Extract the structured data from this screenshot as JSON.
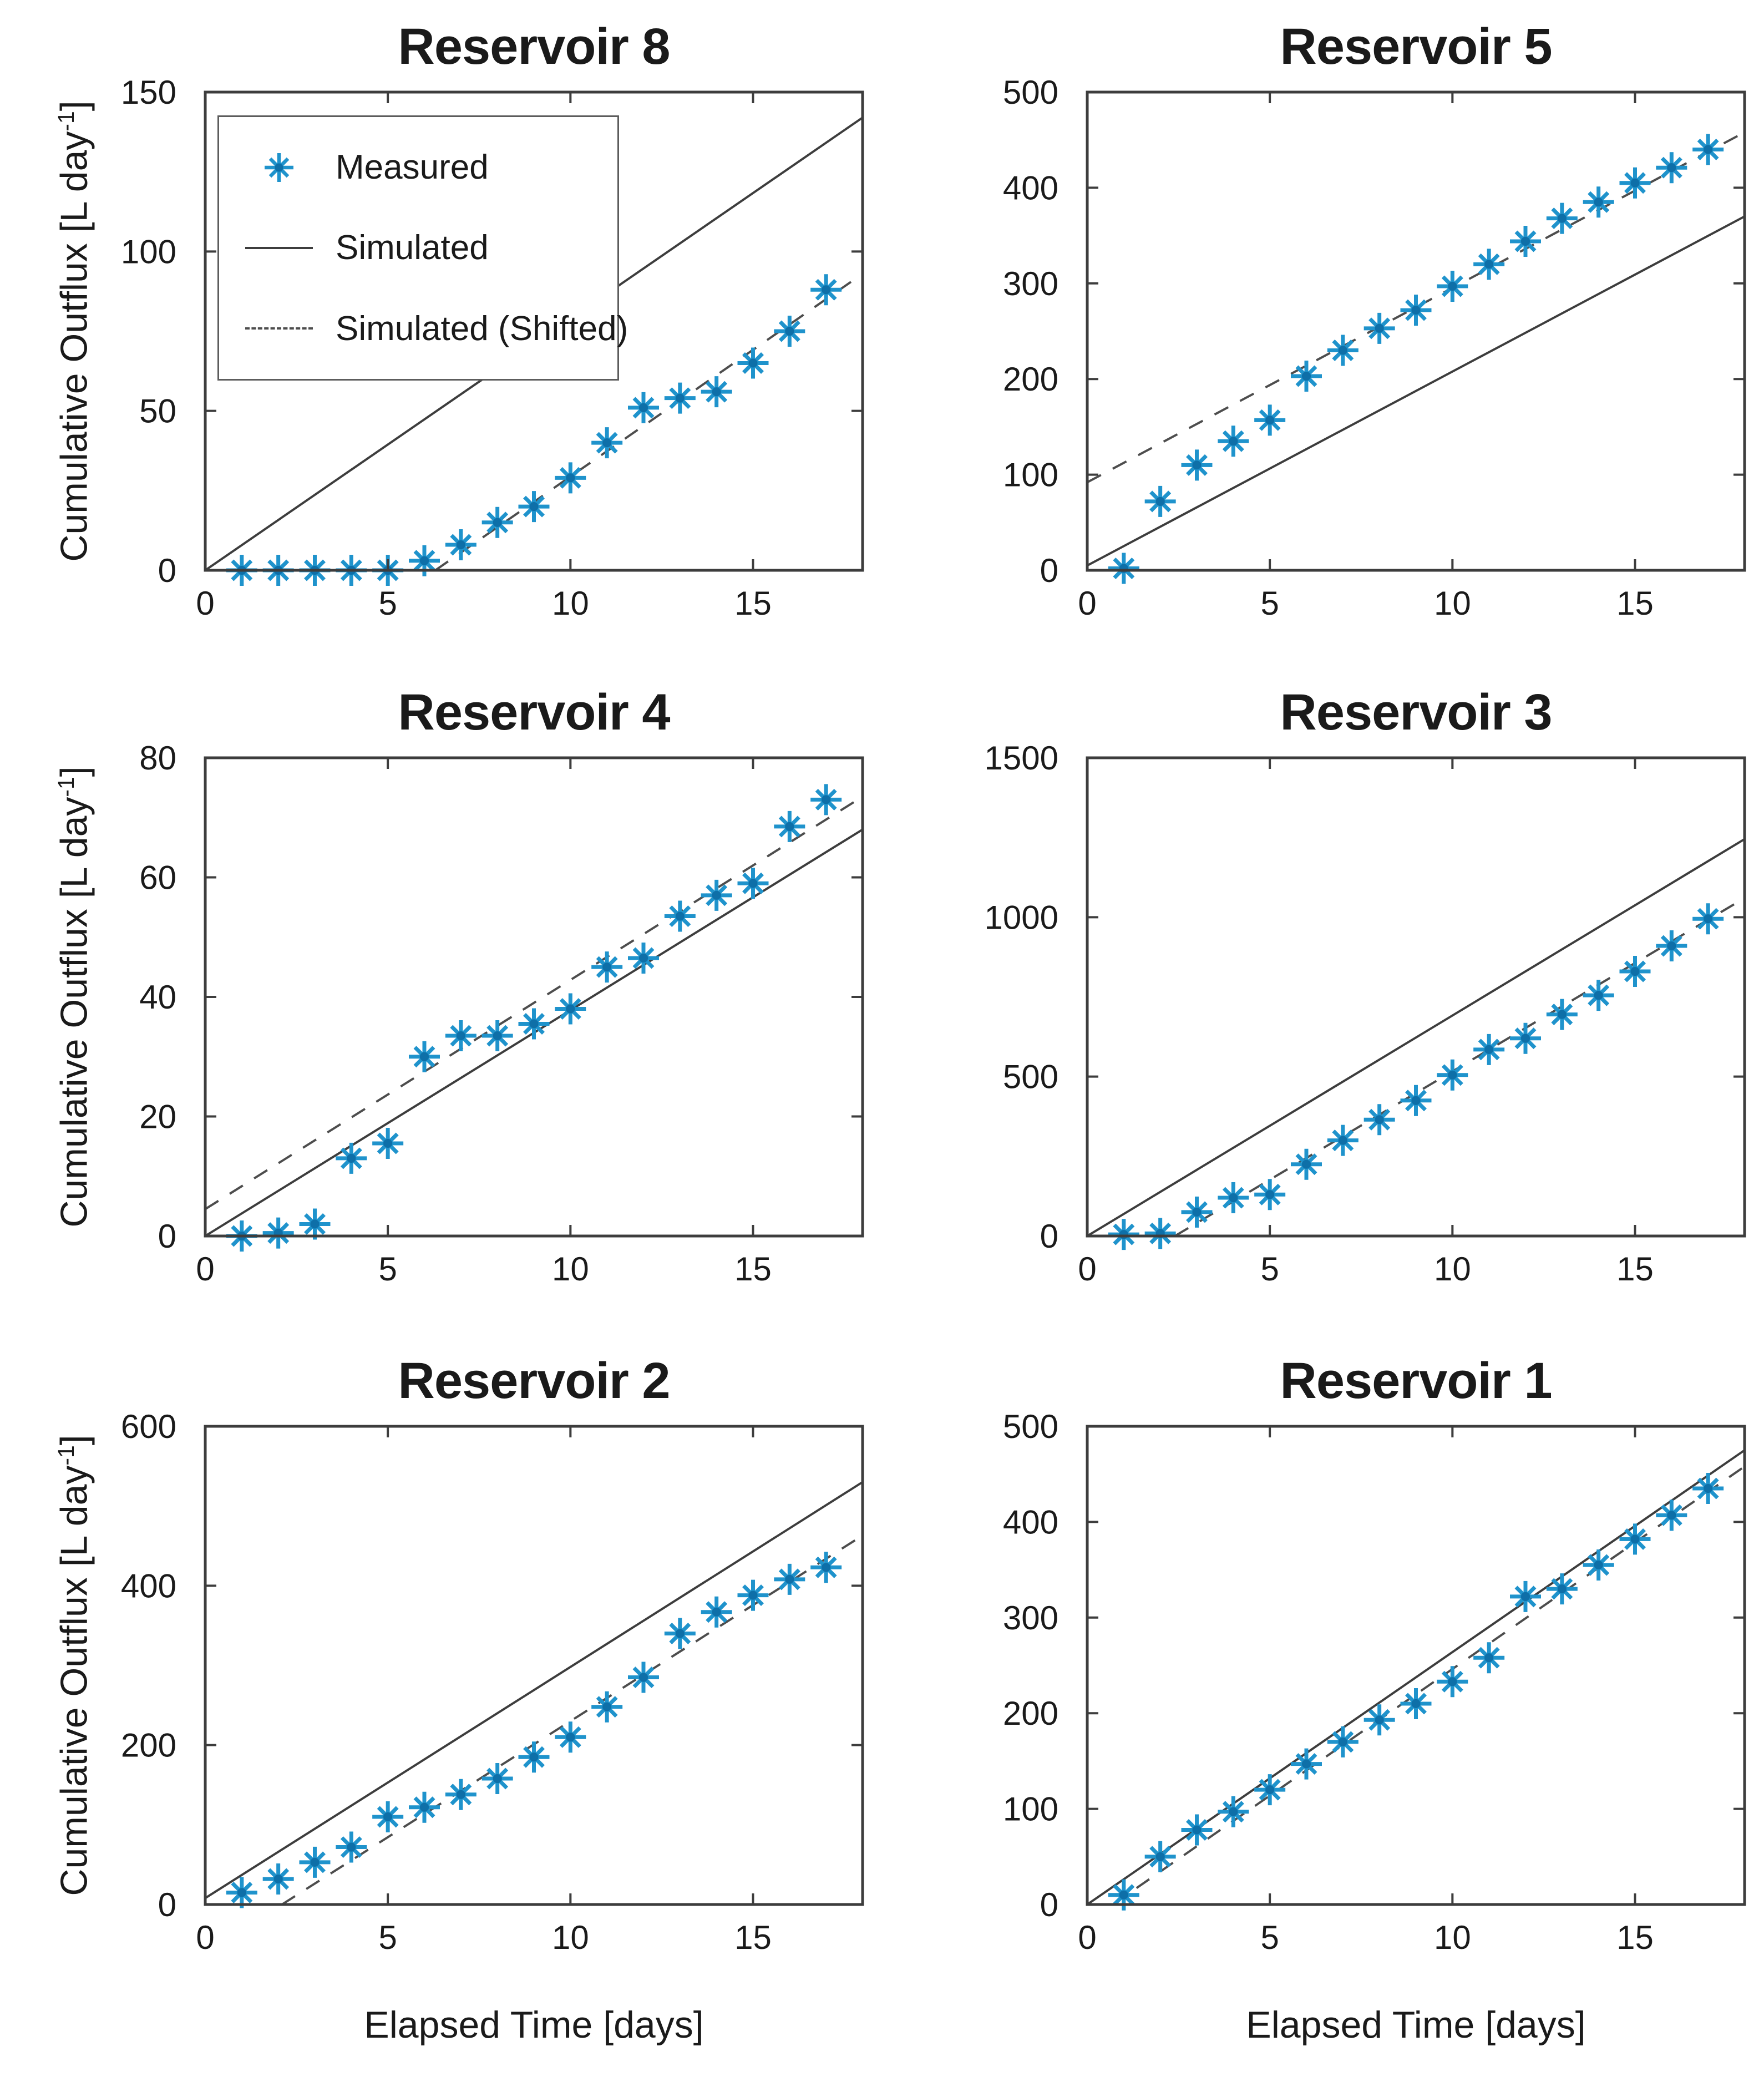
{
  "axes": {
    "ylabel_main": "Cumulative Outflux [L day",
    "ylabel_sup": "-1",
    "ylabel_close": "]",
    "xlabel": "Elapsed Time [days]"
  },
  "legend": {
    "items": [
      {
        "label": "Measured",
        "type": "marker"
      },
      {
        "label": "Simulated",
        "type": "line"
      },
      {
        "label": "Simulated (Shifted)",
        "type": "dashed"
      }
    ]
  },
  "colors": {
    "measured": "#1f93cc",
    "measured_center": "#0e6fa8",
    "simulated": "#3d3d3d",
    "simulated_shifted": "#4d4d4d",
    "axis": "#3d3d3d",
    "text": "#1a1a1a"
  },
  "chart_data": [
    {
      "type": "scatter",
      "title": "Reservoir 8",
      "xlim": [
        0,
        18
      ],
      "ylim": [
        0,
        150
      ],
      "xticks": [
        0,
        5,
        10,
        15
      ],
      "yticks": [
        0,
        50,
        100,
        150
      ],
      "x": [
        1,
        2,
        3,
        4,
        5,
        6,
        7,
        8,
        9,
        10,
        11,
        12,
        13,
        14,
        15,
        16,
        17
      ],
      "measured": [
        0,
        0,
        0,
        0,
        0,
        3,
        8,
        15,
        20,
        29,
        40,
        51,
        54,
        56,
        65,
        75,
        88
      ],
      "simulated": {
        "x": [
          0,
          18
        ],
        "y": [
          0,
          142
        ]
      },
      "simulated_shifted": {
        "x": [
          6.3,
          18
        ],
        "y": [
          0,
          93
        ]
      }
    },
    {
      "type": "scatter",
      "title": "Reservoir 5",
      "xlim": [
        0,
        18
      ],
      "ylim": [
        0,
        500
      ],
      "xticks": [
        0,
        5,
        10,
        15
      ],
      "yticks": [
        0,
        100,
        200,
        300,
        400,
        500
      ],
      "x": [
        1,
        2,
        3,
        4,
        5,
        6,
        7,
        8,
        9,
        10,
        11,
        12,
        13,
        14,
        15,
        16,
        17
      ],
      "measured": [
        2,
        72,
        110,
        135,
        157,
        203,
        230,
        253,
        272,
        297,
        320,
        344,
        368,
        385,
        405,
        421,
        440
      ],
      "simulated": {
        "x": [
          0,
          18
        ],
        "y": [
          5,
          370
        ]
      },
      "simulated_shifted": {
        "x": [
          0,
          18
        ],
        "y": [
          92,
          458
        ]
      }
    },
    {
      "type": "scatter",
      "title": "Reservoir 4",
      "xlim": [
        0,
        18
      ],
      "ylim": [
        0,
        80
      ],
      "xticks": [
        0,
        5,
        10,
        15
      ],
      "yticks": [
        0,
        20,
        40,
        60,
        80
      ],
      "x": [
        1,
        2,
        3,
        4,
        5,
        6,
        7,
        8,
        9,
        10,
        11,
        12,
        13,
        14,
        15,
        16,
        17
      ],
      "measured": [
        0,
        0.5,
        2,
        13,
        15.5,
        30,
        33.5,
        33.5,
        35.5,
        38,
        45,
        46.5,
        53.5,
        57,
        59,
        68.5,
        73
      ],
      "simulated": {
        "x": [
          0,
          18
        ],
        "y": [
          0,
          68
        ]
      },
      "simulated_shifted": {
        "x": [
          0,
          18
        ],
        "y": [
          4.5,
          73.5
        ]
      }
    },
    {
      "type": "scatter",
      "title": "Reservoir 3",
      "xlim": [
        0,
        18
      ],
      "ylim": [
        0,
        1500
      ],
      "xticks": [
        0,
        5,
        10,
        15
      ],
      "yticks": [
        0,
        500,
        1000,
        1500
      ],
      "x": [
        1,
        2,
        3,
        4,
        5,
        6,
        7,
        8,
        9,
        10,
        11,
        12,
        13,
        14,
        15,
        16,
        17
      ],
      "measured": [
        5,
        8,
        75,
        120,
        130,
        225,
        300,
        365,
        425,
        505,
        585,
        620,
        695,
        755,
        830,
        910,
        995
      ],
      "simulated": {
        "x": [
          0,
          18
        ],
        "y": [
          0,
          1245
        ]
      },
      "simulated_shifted": {
        "x": [
          2.4,
          18
        ],
        "y": [
          0,
          1060
        ]
      }
    },
    {
      "type": "scatter",
      "title": "Reservoir 2",
      "xlim": [
        0,
        18
      ],
      "ylim": [
        0,
        600
      ],
      "xticks": [
        0,
        5,
        10,
        15
      ],
      "yticks": [
        0,
        200,
        400,
        600
      ],
      "x": [
        1,
        2,
        3,
        4,
        5,
        6,
        7,
        8,
        9,
        10,
        11,
        12,
        13,
        14,
        15,
        16,
        17
      ],
      "measured": [
        15,
        32,
        53,
        72,
        110,
        122,
        138,
        158,
        185,
        210,
        248,
        285,
        340,
        367,
        388,
        408,
        423
      ],
      "simulated": {
        "x": [
          0,
          18
        ],
        "y": [
          8,
          530
        ]
      },
      "simulated_shifted": {
        "x": [
          2.1,
          18
        ],
        "y": [
          0,
          463
        ]
      }
    },
    {
      "type": "scatter",
      "title": "Reservoir 1",
      "xlim": [
        0,
        18
      ],
      "ylim": [
        0,
        500
      ],
      "xticks": [
        0,
        5,
        10,
        15
      ],
      "yticks": [
        0,
        100,
        200,
        300,
        400,
        500
      ],
      "x": [
        1,
        2,
        3,
        4,
        5,
        6,
        7,
        8,
        9,
        10,
        11,
        12,
        13,
        14,
        15,
        16,
        17
      ],
      "measured": [
        10,
        50,
        78,
        97,
        120,
        147,
        170,
        193,
        210,
        233,
        258,
        322,
        330,
        355,
        382,
        407,
        435
      ],
      "simulated": {
        "x": [
          0,
          18
        ],
        "y": [
          0,
          475
        ]
      },
      "simulated_shifted": {
        "x": [
          0.7,
          18
        ],
        "y": [
          0,
          458
        ]
      }
    }
  ]
}
